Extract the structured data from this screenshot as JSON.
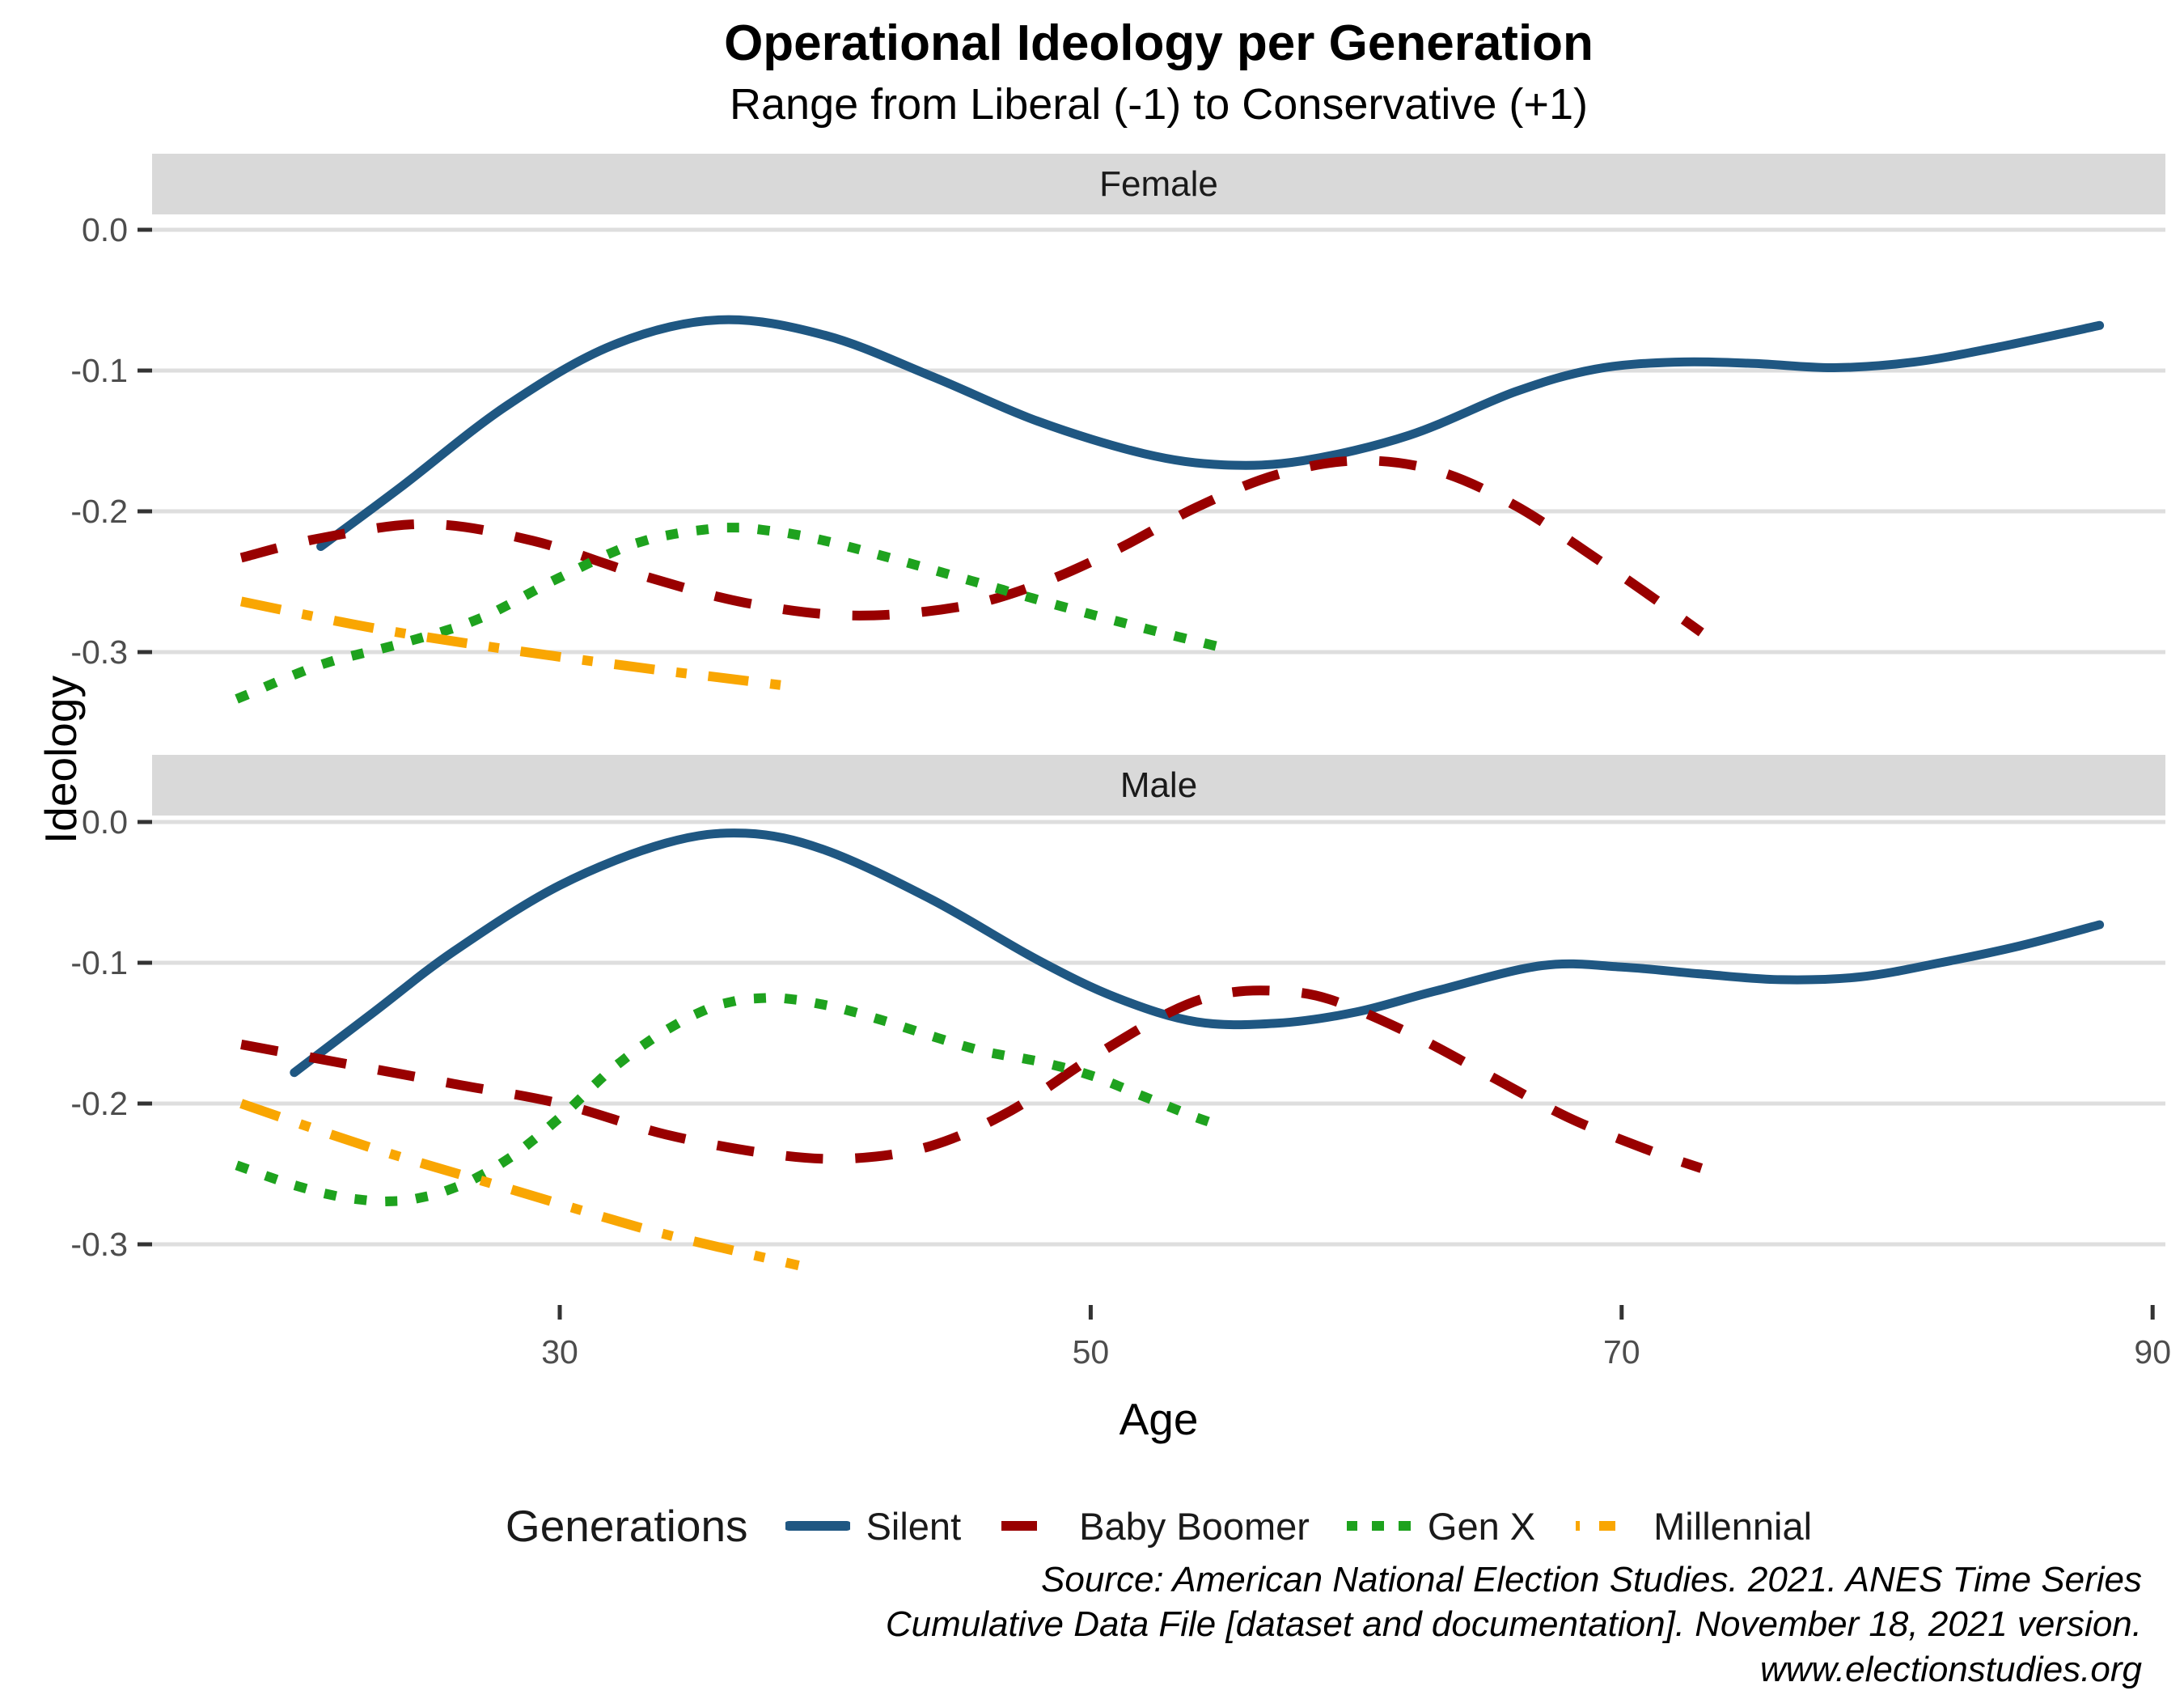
{
  "title": "Operational Ideology per Generation",
  "subtitle": "Range from Liberal (-1) to Conservative (+1)",
  "x_axis": {
    "title": "Age",
    "ticks": [
      "30",
      "50",
      "70",
      "90"
    ],
    "tick_values": [
      30,
      50,
      70,
      90
    ]
  },
  "y_axis": {
    "title": "Ideology",
    "ticks": [
      "0.0",
      "-0.1",
      "-0.2",
      "-0.3"
    ],
    "tick_values": [
      0,
      -0.1,
      -0.2,
      -0.3
    ]
  },
  "legend": {
    "title": "Generations",
    "items": [
      {
        "label": "Silent"
      },
      {
        "label": "Baby Boomer"
      },
      {
        "label": "Gen X"
      },
      {
        "label": "Millennial"
      }
    ]
  },
  "caption": {
    "lines": [
      "Source: American National Election Studies. 2021. ANES Time Series",
      "Cumulative Data File [dataset and documentation]. November 18, 2021 version.",
      "www.electionstudies.org"
    ]
  },
  "colors": {
    "strip_background": "#D9D9D9",
    "gridline": "#DEDEDE",
    "tick_mark": "#333333",
    "tick_text": "#4D4D4D",
    "facet_text": "#1A1A1A",
    "silent": "#1F5782",
    "baby_boomer": "#990000",
    "gen_x": "#1EA21E",
    "millennial": "#F9A602"
  },
  "chart_data": {
    "type": "line",
    "title": "Operational Ideology per Generation",
    "subtitle": "Range from Liberal (-1) to Conservative (+1)",
    "xlabel": "Age",
    "ylabel": "Ideology",
    "xlim": [
      14.5,
      91.5
    ],
    "ylim": [
      -0.34,
      0.01
    ],
    "grid": "horizontal-major",
    "legend_position": "bottom",
    "facets": [
      {
        "name": "Female",
        "series": [
          {
            "name": "Silent",
            "color": "#1F5782",
            "dash": "solid",
            "x": [
              21,
              24,
              28,
              32,
              36,
              40,
              44,
              48,
              52,
              55,
              58,
              62,
              66,
              69,
              72,
              75,
              78,
              81,
              84,
              88
            ],
            "y": [
              -0.225,
              -0.183,
              -0.125,
              -0.082,
              -0.064,
              -0.075,
              -0.104,
              -0.136,
              -0.159,
              -0.167,
              -0.164,
              -0.146,
              -0.115,
              -0.099,
              -0.094,
              -0.095,
              -0.098,
              -0.094,
              -0.084,
              -0.068
            ]
          },
          {
            "name": "Baby Boomer",
            "color": "#990000",
            "dash": "dash",
            "x": [
              18,
              21,
              25,
              29,
              33,
              37,
              41,
              45,
              48,
              51,
              54,
              57,
              60,
              63,
              66,
              69,
              71,
              73
            ],
            "y": [
              -0.233,
              -0.219,
              -0.209,
              -0.221,
              -0.245,
              -0.265,
              -0.274,
              -0.268,
              -0.252,
              -0.227,
              -0.197,
              -0.174,
              -0.164,
              -0.171,
              -0.196,
              -0.233,
              -0.259,
              -0.286
            ]
          },
          {
            "name": "Gen X",
            "color": "#1EA21E",
            "dash": "dot",
            "x": [
              18,
              21,
              24,
              27,
              30,
              33,
              36,
              38,
              40,
              43,
              46,
              49,
              52,
              55
            ],
            "y": [
              -0.332,
              -0.309,
              -0.294,
              -0.276,
              -0.247,
              -0.222,
              -0.212,
              -0.214,
              -0.221,
              -0.236,
              -0.252,
              -0.268,
              -0.283,
              -0.297
            ]
          },
          {
            "name": "Millennial",
            "color": "#F9A602",
            "dash": "dashdot",
            "x": [
              18,
              23,
              28,
              33,
              36,
              39
            ],
            "y": [
              -0.264,
              -0.283,
              -0.298,
              -0.311,
              -0.318,
              -0.325
            ]
          }
        ]
      },
      {
        "name": "Male",
        "series": [
          {
            "name": "Silent",
            "color": "#1F5782",
            "dash": "solid",
            "x": [
              20,
              23,
              26,
              30,
              34,
              37,
              40,
              44,
              48,
              51,
              54,
              57,
              60,
              63,
              67,
              70,
              73,
              76,
              79,
              82,
              85,
              88
            ],
            "y": [
              -0.178,
              -0.135,
              -0.092,
              -0.045,
              -0.015,
              -0.008,
              -0.02,
              -0.055,
              -0.098,
              -0.125,
              -0.142,
              -0.143,
              -0.135,
              -0.12,
              -0.102,
              -0.103,
              -0.108,
              -0.112,
              -0.11,
              -0.1,
              -0.088,
              -0.073
            ]
          },
          {
            "name": "Baby Boomer",
            "color": "#990000",
            "dash": "dash",
            "x": [
              18,
              22,
              26,
              30,
              34,
              38,
              41,
              44,
              47,
              50,
              53,
              55,
              57,
              59,
              62,
              65,
              68,
              71,
              73
            ],
            "y": [
              -0.158,
              -0.172,
              -0.186,
              -0.2,
              -0.222,
              -0.236,
              -0.239,
              -0.23,
              -0.205,
              -0.168,
              -0.135,
              -0.122,
              -0.12,
              -0.126,
              -0.15,
              -0.18,
              -0.21,
              -0.233,
              -0.246
            ]
          },
          {
            "name": "Gen X",
            "color": "#1EA21E",
            "dash": "dot",
            "x": [
              18,
              20,
              22,
              24,
              26,
              28,
              30,
              32,
              34,
              36,
              38,
              40,
              42,
              44,
              46,
              48,
              50,
              52,
              54,
              55
            ],
            "y": [
              -0.245,
              -0.258,
              -0.267,
              -0.269,
              -0.26,
              -0.24,
              -0.21,
              -0.175,
              -0.148,
              -0.13,
              -0.125,
              -0.13,
              -0.14,
              -0.152,
              -0.163,
              -0.17,
              -0.18,
              -0.195,
              -0.21,
              -0.216
            ]
          },
          {
            "name": "Millennial",
            "color": "#F9A602",
            "dash": "dashdot",
            "x": [
              18,
              23,
              28,
              33,
              36,
              39
            ],
            "y": [
              -0.2,
              -0.232,
              -0.26,
              -0.288,
              -0.302,
              -0.315
            ]
          }
        ]
      }
    ]
  }
}
